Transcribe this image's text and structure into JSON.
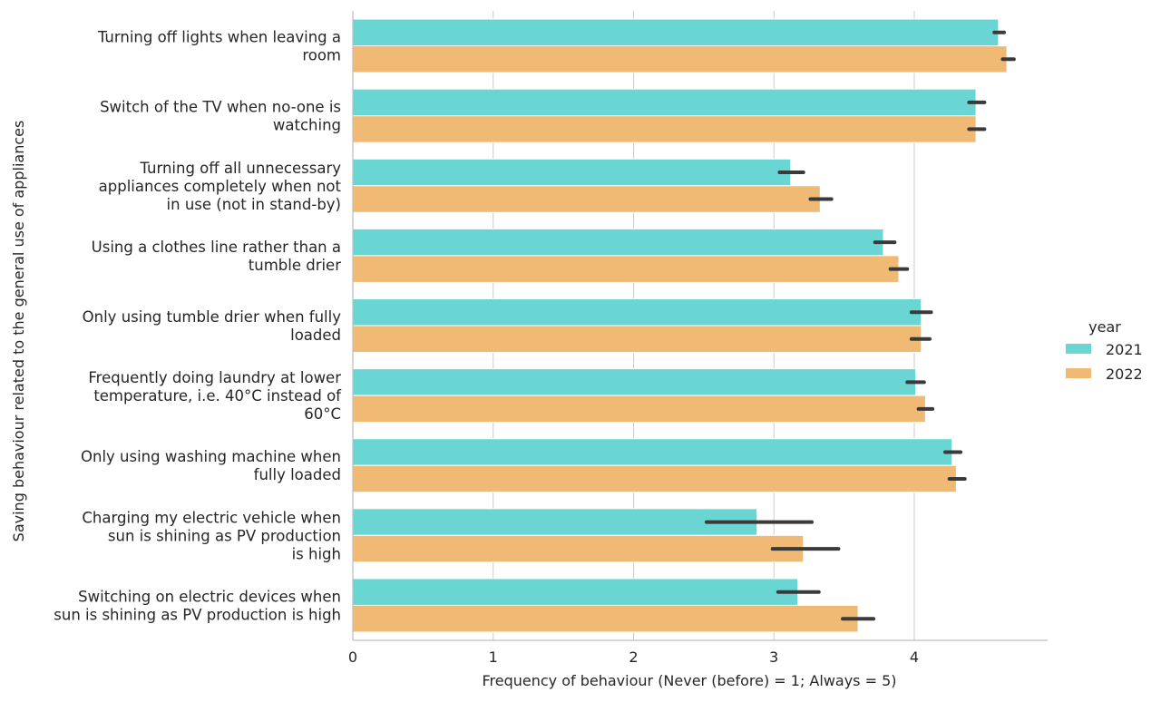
{
  "chart_data": {
    "type": "bar",
    "orientation": "horizontal",
    "xlabel": "Frequency of behaviour (Never (before) = 1; Always = 5)",
    "ylabel": "Saving behaviour related to the general use of appliances",
    "xlim": [
      0,
      4.95
    ],
    "xticks": [
      0,
      1,
      2,
      3,
      4
    ],
    "grid": "vertical",
    "legend": {
      "title": "year",
      "placement": "right"
    },
    "colors": {
      "2021": "#6ad6d4",
      "2022": "#f0b974",
      "error": "#3a3a3a",
      "grid": "#cccccc",
      "axis": "#bfbfbf"
    },
    "categories": [
      [
        "Turning off lights when leaving a",
        "room"
      ],
      [
        "Switch of the TV when no-one is",
        "watching"
      ],
      [
        "Turning off all unnecessary",
        "appliances completely when not",
        "in use (not in stand-by)"
      ],
      [
        "Using a clothes line rather than a",
        "tumble drier"
      ],
      [
        "Only using tumble drier when fully",
        "loaded"
      ],
      [
        "Frequently doing laundry at lower",
        "temperature, i.e. 40°C instead of",
        "60°C"
      ],
      [
        "Only using washing machine when",
        "fully loaded"
      ],
      [
        "Charging my electric vehicle when",
        "sun is shining as PV production",
        "is high"
      ],
      [
        "Switching on electric devices when",
        "sun is shining as PV production is high"
      ]
    ],
    "series": [
      {
        "name": "2021",
        "values": [
          4.6,
          4.44,
          3.12,
          3.78,
          4.05,
          4.01,
          4.27,
          2.88,
          3.17
        ],
        "ci_low": [
          4.57,
          4.39,
          3.04,
          3.72,
          3.98,
          3.95,
          4.22,
          2.52,
          3.03
        ],
        "ci_high": [
          4.64,
          4.5,
          3.21,
          3.86,
          4.12,
          4.07,
          4.33,
          3.27,
          3.32
        ]
      },
      {
        "name": "2022",
        "values": [
          4.66,
          4.44,
          3.33,
          3.89,
          4.05,
          4.08,
          4.3,
          3.21,
          3.6
        ],
        "ci_low": [
          4.63,
          4.39,
          3.26,
          3.83,
          3.98,
          4.03,
          4.25,
          2.99,
          3.49
        ],
        "ci_high": [
          4.71,
          4.5,
          3.41,
          3.95,
          4.11,
          4.13,
          4.36,
          3.46,
          3.71
        ]
      }
    ]
  }
}
